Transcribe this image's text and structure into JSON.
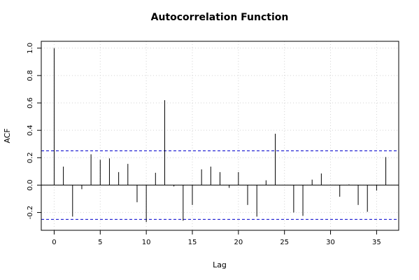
{
  "chart_data": {
    "type": "bar",
    "title": "Autocorrelation Function",
    "xlabel": "Lag",
    "ylabel": "ACF",
    "xlim": [
      -1.4,
      37.4
    ],
    "ylim": [
      -0.33,
      1.05
    ],
    "x_ticks": [
      0,
      5,
      10,
      15,
      20,
      25,
      30,
      35
    ],
    "y_ticks": [
      -0.2,
      0.0,
      0.2,
      0.4,
      0.6,
      0.8,
      1.0
    ],
    "x_tick_labels": [
      "0",
      "5",
      "10",
      "15",
      "20",
      "25",
      "30",
      "35"
    ],
    "y_tick_labels": [
      "-0.2",
      "0.0",
      "0.2",
      "0.4",
      "0.6",
      "0.8",
      "1.0"
    ],
    "grid": true,
    "confidence_bounds": [
      0.25,
      -0.25
    ],
    "lags": [
      0,
      1,
      2,
      3,
      4,
      5,
      6,
      7,
      8,
      9,
      10,
      11,
      12,
      13,
      14,
      15,
      16,
      17,
      18,
      19,
      20,
      21,
      22,
      23,
      24,
      25,
      26,
      27,
      28,
      29,
      30,
      31,
      32,
      33,
      34,
      35,
      36
    ],
    "values": [
      1.0,
      0.135,
      -0.23,
      -0.03,
      0.225,
      0.185,
      0.195,
      0.095,
      0.155,
      -0.125,
      -0.27,
      0.09,
      0.62,
      -0.01,
      -0.26,
      -0.145,
      0.115,
      0.135,
      0.095,
      -0.02,
      0.095,
      -0.145,
      -0.23,
      0.035,
      0.375,
      0.0,
      -0.2,
      -0.225,
      0.04,
      0.085,
      0.0,
      -0.085,
      0.005,
      -0.145,
      -0.195,
      -0.04,
      0.205
    ],
    "colors": {
      "bars": "#000000",
      "bounds": "#0000cc",
      "grid": "#d3d3d3",
      "zero_line": "#000000"
    }
  }
}
